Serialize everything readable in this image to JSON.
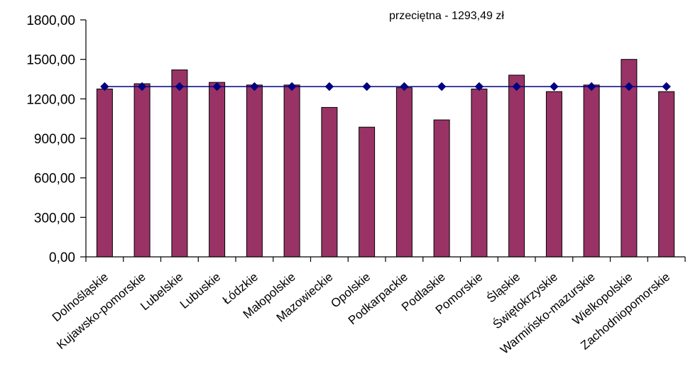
{
  "chart_data": {
    "type": "bar",
    "categories": [
      "Dolnośląskie",
      "Kujawsko-pomorskie",
      "Lubelskie",
      "Lubuskie",
      "Łódzkie",
      "Małopolskie",
      "Mazowieckie",
      "Opolskie",
      "Podkarpackie",
      "Podlaskie",
      "Pomorskie",
      "Śląskie",
      "Świętokrzyskie",
      "Warmińsko-mazurskie",
      "Wielkopolskie",
      "Zachodniopomorskie"
    ],
    "series": [
      {
        "values": [
          1275,
          1315,
          1420,
          1325,
          1305,
          1305,
          1135,
          985,
          1285,
          1040,
          1275,
          1380,
          1255,
          1305,
          1500,
          1255
        ]
      }
    ],
    "average": {
      "value": 1293.49,
      "label": "przeciętna - 1293,49 zł"
    },
    "ylim": [
      0,
      1800
    ],
    "yticks": [
      "0,00",
      "300,00",
      "600,00",
      "900,00",
      "1200,00",
      "1500,00",
      "1800,00"
    ],
    "ytick_values": [
      0,
      300,
      600,
      900,
      1200,
      1500,
      1800
    ],
    "colors": {
      "bar": "#993366",
      "line": "#000080"
    },
    "grid": false,
    "legend": "none"
  }
}
